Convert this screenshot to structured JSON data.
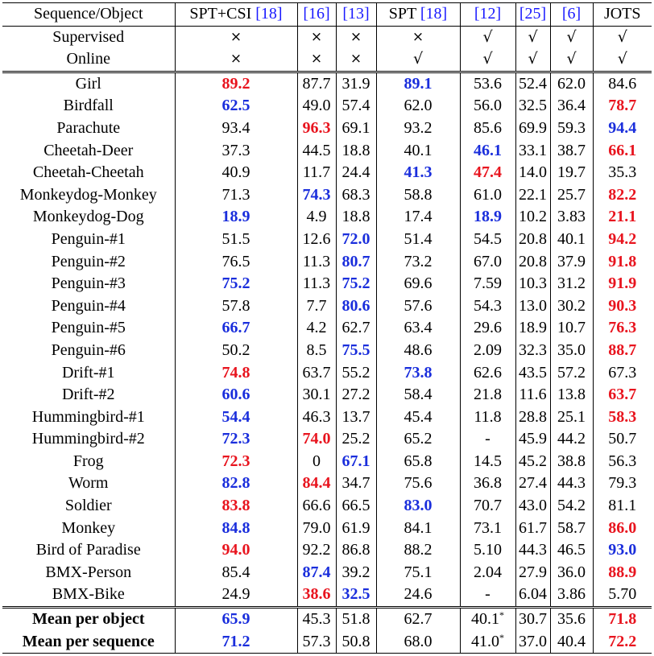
{
  "headers": {
    "seq": "Sequence/Object",
    "m1": "SPT+CSI",
    "m1_ref": "[18]",
    "m2_ref": "[16]",
    "m3_ref": "[13]",
    "m4": "SPT",
    "m4_ref": "[18]",
    "m5_ref": "[12]",
    "m6_ref": "[25]",
    "m7_ref": "[6]",
    "m8": "JOTS"
  },
  "attributes": [
    {
      "label": "Supervised",
      "values": [
        "×",
        "×",
        "×",
        "×",
        "√",
        "√",
        "√",
        "√"
      ]
    },
    {
      "label": "Online",
      "values": [
        "×",
        "×",
        "×",
        "√",
        "√",
        "√",
        "√",
        "√"
      ]
    }
  ],
  "rows": [
    {
      "name": "Girl",
      "cells": [
        {
          "v": "89.2",
          "s": "red"
        },
        {
          "v": "87.7"
        },
        {
          "v": "31.9"
        },
        {
          "v": "89.1",
          "s": "blue"
        },
        {
          "v": "53.6"
        },
        {
          "v": "52.4"
        },
        {
          "v": "62.0"
        },
        {
          "v": "84.6"
        }
      ]
    },
    {
      "name": "Birdfall",
      "cells": [
        {
          "v": "62.5",
          "s": "blue"
        },
        {
          "v": "49.0"
        },
        {
          "v": "57.4"
        },
        {
          "v": "62.0"
        },
        {
          "v": "56.0"
        },
        {
          "v": "32.5"
        },
        {
          "v": "36.4"
        },
        {
          "v": "78.7",
          "s": "red"
        }
      ]
    },
    {
      "name": "Parachute",
      "cells": [
        {
          "v": "93.4"
        },
        {
          "v": "96.3",
          "s": "red"
        },
        {
          "v": "69.1"
        },
        {
          "v": "93.2"
        },
        {
          "v": "85.6"
        },
        {
          "v": "69.9"
        },
        {
          "v": "59.3"
        },
        {
          "v": "94.4",
          "s": "blue"
        }
      ]
    },
    {
      "name": "Cheetah-Deer",
      "cells": [
        {
          "v": "37.3"
        },
        {
          "v": "44.5"
        },
        {
          "v": "18.8"
        },
        {
          "v": "40.1"
        },
        {
          "v": "46.1",
          "s": "blue"
        },
        {
          "v": "33.1"
        },
        {
          "v": "38.7"
        },
        {
          "v": "66.1",
          "s": "red"
        }
      ]
    },
    {
      "name": "Cheetah-Cheetah",
      "cells": [
        {
          "v": "40.9"
        },
        {
          "v": "11.7"
        },
        {
          "v": "24.4"
        },
        {
          "v": "41.3",
          "s": "blue"
        },
        {
          "v": "47.4",
          "s": "red"
        },
        {
          "v": "14.0"
        },
        {
          "v": "19.7"
        },
        {
          "v": "35.3"
        }
      ]
    },
    {
      "name": "Monkeydog-Monkey",
      "cells": [
        {
          "v": "71.3"
        },
        {
          "v": "74.3",
          "s": "blue"
        },
        {
          "v": "68.3"
        },
        {
          "v": "58.8"
        },
        {
          "v": "61.0"
        },
        {
          "v": "22.1"
        },
        {
          "v": "25.7"
        },
        {
          "v": "82.2",
          "s": "red"
        }
      ]
    },
    {
      "name": "Monkeydog-Dog",
      "cells": [
        {
          "v": "18.9",
          "s": "blue"
        },
        {
          "v": "4.9"
        },
        {
          "v": "18.8"
        },
        {
          "v": "17.4"
        },
        {
          "v": "18.9",
          "s": "blue"
        },
        {
          "v": "10.2"
        },
        {
          "v": "3.83"
        },
        {
          "v": "21.1",
          "s": "red"
        }
      ]
    },
    {
      "name": "Penguin-#1",
      "cells": [
        {
          "v": "51.5"
        },
        {
          "v": "12.6"
        },
        {
          "v": "72.0",
          "s": "blue"
        },
        {
          "v": "51.4"
        },
        {
          "v": "54.5"
        },
        {
          "v": "20.8"
        },
        {
          "v": "40.1"
        },
        {
          "v": "94.2",
          "s": "red"
        }
      ]
    },
    {
      "name": "Penguin-#2",
      "cells": [
        {
          "v": "76.5"
        },
        {
          "v": "11.3"
        },
        {
          "v": "80.7",
          "s": "blue"
        },
        {
          "v": "73.2"
        },
        {
          "v": "67.0"
        },
        {
          "v": "20.8"
        },
        {
          "v": "37.9"
        },
        {
          "v": "91.8",
          "s": "red"
        }
      ]
    },
    {
      "name": "Penguin-#3",
      "cells": [
        {
          "v": "75.2",
          "s": "blue"
        },
        {
          "v": "11.3"
        },
        {
          "v": "75.2",
          "s": "blue"
        },
        {
          "v": "69.6"
        },
        {
          "v": "7.59"
        },
        {
          "v": "10.3"
        },
        {
          "v": "31.2"
        },
        {
          "v": "91.9",
          "s": "red"
        }
      ]
    },
    {
      "name": "Penguin-#4",
      "cells": [
        {
          "v": "57.8"
        },
        {
          "v": "7.7"
        },
        {
          "v": "80.6",
          "s": "blue"
        },
        {
          "v": "57.6"
        },
        {
          "v": "54.3"
        },
        {
          "v": "13.0"
        },
        {
          "v": "30.2"
        },
        {
          "v": "90.3",
          "s": "red"
        }
      ]
    },
    {
      "name": "Penguin-#5",
      "cells": [
        {
          "v": "66.7",
          "s": "blue"
        },
        {
          "v": "4.2"
        },
        {
          "v": "62.7"
        },
        {
          "v": "63.4"
        },
        {
          "v": "29.6"
        },
        {
          "v": "18.9"
        },
        {
          "v": "10.7"
        },
        {
          "v": "76.3",
          "s": "red"
        }
      ]
    },
    {
      "name": "Penguin-#6",
      "cells": [
        {
          "v": "50.2"
        },
        {
          "v": "8.5"
        },
        {
          "v": "75.5",
          "s": "blue"
        },
        {
          "v": "48.6"
        },
        {
          "v": "2.09"
        },
        {
          "v": "32.3"
        },
        {
          "v": "35.0"
        },
        {
          "v": "88.7",
          "s": "red"
        }
      ]
    },
    {
      "name": "Drift-#1",
      "cells": [
        {
          "v": "74.8",
          "s": "red"
        },
        {
          "v": "63.7"
        },
        {
          "v": "55.2"
        },
        {
          "v": "73.8",
          "s": "blue"
        },
        {
          "v": "62.6"
        },
        {
          "v": "43.5"
        },
        {
          "v": "57.2"
        },
        {
          "v": "67.3"
        }
      ]
    },
    {
      "name": "Drift-#2",
      "cells": [
        {
          "v": "60.6",
          "s": "blue"
        },
        {
          "v": "30.1"
        },
        {
          "v": "27.2"
        },
        {
          "v": "58.4"
        },
        {
          "v": "21.8"
        },
        {
          "v": "11.6"
        },
        {
          "v": "13.8"
        },
        {
          "v": "63.7",
          "s": "red"
        }
      ]
    },
    {
      "name": "Hummingbird-#1",
      "cells": [
        {
          "v": "54.4",
          "s": "blue"
        },
        {
          "v": "46.3"
        },
        {
          "v": "13.7"
        },
        {
          "v": "45.4"
        },
        {
          "v": "11.8"
        },
        {
          "v": "28.8"
        },
        {
          "v": "25.1"
        },
        {
          "v": "58.3",
          "s": "red"
        }
      ]
    },
    {
      "name": "Hummingbird-#2",
      "cells": [
        {
          "v": "72.3",
          "s": "blue"
        },
        {
          "v": "74.0",
          "s": "red"
        },
        {
          "v": "25.2"
        },
        {
          "v": "65.2"
        },
        {
          "v": "-"
        },
        {
          "v": "45.9"
        },
        {
          "v": "44.2"
        },
        {
          "v": "50.7"
        }
      ]
    },
    {
      "name": "Frog",
      "cells": [
        {
          "v": "72.3",
          "s": "red"
        },
        {
          "v": "0"
        },
        {
          "v": "67.1",
          "s": "blue"
        },
        {
          "v": "65.8"
        },
        {
          "v": "14.5"
        },
        {
          "v": "45.2"
        },
        {
          "v": "38.8"
        },
        {
          "v": "56.3"
        }
      ]
    },
    {
      "name": "Worm",
      "cells": [
        {
          "v": "82.8",
          "s": "blue"
        },
        {
          "v": "84.4",
          "s": "red"
        },
        {
          "v": "34.7"
        },
        {
          "v": "75.6"
        },
        {
          "v": "36.8"
        },
        {
          "v": "27.4"
        },
        {
          "v": "44.3"
        },
        {
          "v": "79.3"
        }
      ]
    },
    {
      "name": "Soldier",
      "cells": [
        {
          "v": "83.8",
          "s": "red"
        },
        {
          "v": "66.6"
        },
        {
          "v": "66.5"
        },
        {
          "v": "83.0",
          "s": "blue"
        },
        {
          "v": "70.7"
        },
        {
          "v": "43.0"
        },
        {
          "v": "54.2"
        },
        {
          "v": "81.1"
        }
      ]
    },
    {
      "name": "Monkey",
      "cells": [
        {
          "v": "84.8",
          "s": "blue"
        },
        {
          "v": "79.0"
        },
        {
          "v": "61.9"
        },
        {
          "v": "84.1"
        },
        {
          "v": "73.1"
        },
        {
          "v": "61.7"
        },
        {
          "v": "58.7"
        },
        {
          "v": "86.0",
          "s": "red"
        }
      ]
    },
    {
      "name": "Bird of Paradise",
      "cells": [
        {
          "v": "94.0",
          "s": "red"
        },
        {
          "v": "92.2"
        },
        {
          "v": "86.8"
        },
        {
          "v": "88.2"
        },
        {
          "v": "5.10"
        },
        {
          "v": "44.3"
        },
        {
          "v": "46.5"
        },
        {
          "v": "93.0",
          "s": "blue"
        }
      ]
    },
    {
      "name": "BMX-Person",
      "cells": [
        {
          "v": "85.4"
        },
        {
          "v": "87.4",
          "s": "blue"
        },
        {
          "v": "39.2"
        },
        {
          "v": "75.1"
        },
        {
          "v": "2.04"
        },
        {
          "v": "27.9"
        },
        {
          "v": "36.0"
        },
        {
          "v": "88.9",
          "s": "red"
        }
      ]
    },
    {
      "name": "BMX-Bike",
      "cells": [
        {
          "v": "24.9"
        },
        {
          "v": "38.6",
          "s": "red"
        },
        {
          "v": "32.5",
          "s": "blue"
        },
        {
          "v": "24.6"
        },
        {
          "v": "-"
        },
        {
          "v": "6.04"
        },
        {
          "v": "3.86"
        },
        {
          "v": "5.70"
        }
      ]
    }
  ],
  "summary": [
    {
      "name": "Mean per object",
      "cells": [
        {
          "v": "65.9",
          "s": "blue"
        },
        {
          "v": "45.3"
        },
        {
          "v": "51.8"
        },
        {
          "v": "62.7"
        },
        {
          "v": "40.1",
          "sup": "*"
        },
        {
          "v": "30.7"
        },
        {
          "v": "35.6"
        },
        {
          "v": "71.8",
          "s": "red"
        }
      ]
    },
    {
      "name": "Mean per sequence",
      "cells": [
        {
          "v": "71.2",
          "s": "blue"
        },
        {
          "v": "57.3"
        },
        {
          "v": "50.8"
        },
        {
          "v": "68.0"
        },
        {
          "v": "41.0",
          "sup": "*"
        },
        {
          "v": "37.0"
        },
        {
          "v": "40.4"
        },
        {
          "v": "72.2",
          "s": "red"
        }
      ]
    }
  ],
  "colors": {
    "best": "#e8141e",
    "second": "#1a2edc",
    "citation": "#1a1aff"
  }
}
